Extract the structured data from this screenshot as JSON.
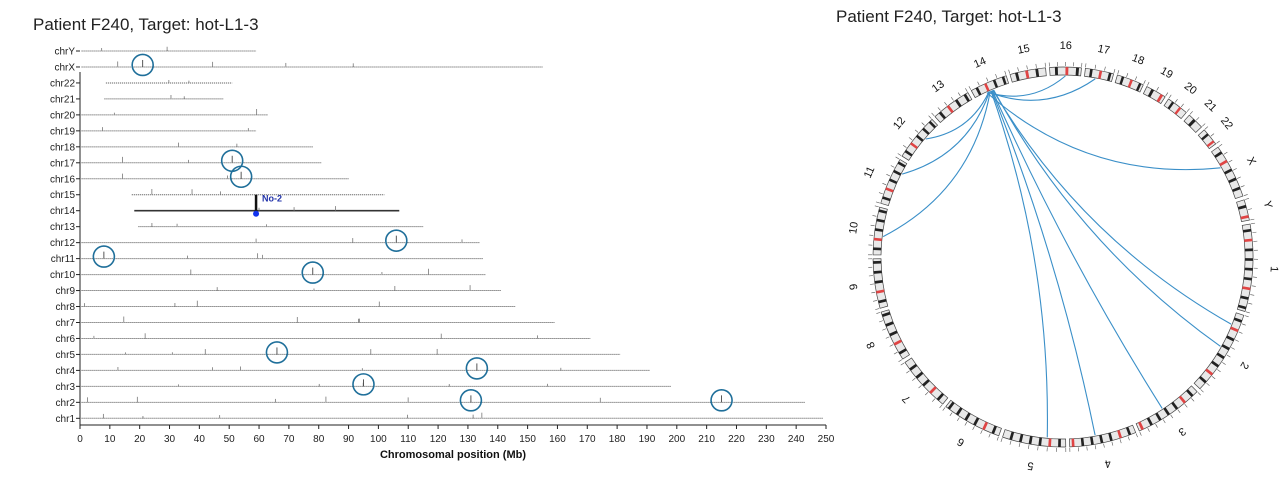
{
  "titles": {
    "left": "Patient F240, Target: hot-L1-3",
    "right": "Patient F240, Target: hot-L1-3"
  },
  "chart_data": [
    {
      "type": "scatter",
      "title": "Patient F240, Target: hot-L1-3",
      "xlabel": "Chromosomal position (Mb)",
      "ylabel": "",
      "xlim": [
        0,
        250
      ],
      "xticks": [
        0,
        10,
        20,
        30,
        40,
        50,
        60,
        70,
        80,
        90,
        100,
        110,
        120,
        130,
        140,
        150,
        160,
        170,
        180,
        190,
        200,
        210,
        220,
        230,
        240,
        250
      ],
      "grid": false,
      "chromosomes": [
        {
          "name": "chrY",
          "length": 59
        },
        {
          "name": "chrX",
          "length": 155
        },
        {
          "name": "chr22",
          "length": 51
        },
        {
          "name": "chr21",
          "length": 48
        },
        {
          "name": "chr20",
          "length": 63
        },
        {
          "name": "chr19",
          "length": 59
        },
        {
          "name": "chr18",
          "length": 78
        },
        {
          "name": "chr17",
          "length": 81
        },
        {
          "name": "chr16",
          "length": 90
        },
        {
          "name": "chr15",
          "length": 102
        },
        {
          "name": "chr14",
          "length": 107
        },
        {
          "name": "chr13",
          "length": 115
        },
        {
          "name": "chr12",
          "length": 134
        },
        {
          "name": "chr11",
          "length": 135
        },
        {
          "name": "chr10",
          "length": 136
        },
        {
          "name": "chr9",
          "length": 141
        },
        {
          "name": "chr8",
          "length": 146
        },
        {
          "name": "chr7",
          "length": 159
        },
        {
          "name": "chr6",
          "length": 171
        },
        {
          "name": "chr5",
          "length": 181
        },
        {
          "name": "chr4",
          "length": 191
        },
        {
          "name": "chr3",
          "length": 198
        },
        {
          "name": "chr2",
          "length": 243
        },
        {
          "name": "chr1",
          "length": 249
        }
      ],
      "source_peak": {
        "chromosome": "chr14",
        "position": 59,
        "label": "No-2"
      },
      "circled_insertions": [
        {
          "chromosome": "chrX",
          "position": 21
        },
        {
          "chromosome": "chr17",
          "position": 51
        },
        {
          "chromosome": "chr16",
          "position": 54
        },
        {
          "chromosome": "chr12",
          "position": 106
        },
        {
          "chromosome": "chr11",
          "position": 8
        },
        {
          "chromosome": "chr10",
          "position": 78
        },
        {
          "chromosome": "chr5",
          "position": 66
        },
        {
          "chromosome": "chr4",
          "position": 133
        },
        {
          "chromosome": "chr3",
          "position": 95
        },
        {
          "chromosome": "chr2",
          "position": 131
        },
        {
          "chromosome": "chr2",
          "position": 215
        }
      ]
    },
    {
      "type": "circos",
      "title": "Patient F240, Target: hot-L1-3",
      "ideogram_order": [
        "1",
        "2",
        "3",
        "4",
        "5",
        "6",
        "7",
        "8",
        "9",
        "10",
        "11",
        "12",
        "13",
        "14",
        "15",
        "16",
        "17",
        "18",
        "19",
        "20",
        "21",
        "22",
        "X",
        "Y"
      ],
      "chromosome_lengths_mb": [
        249,
        243,
        198,
        191,
        181,
        171,
        159,
        146,
        141,
        136,
        135,
        134,
        115,
        107,
        102,
        90,
        81,
        78,
        59,
        63,
        48,
        51,
        155,
        59
      ],
      "links": [
        {
          "from": "14",
          "to": "X"
        },
        {
          "from": "14",
          "to": "16"
        },
        {
          "from": "14",
          "to": "17"
        },
        {
          "from": "14",
          "to": "12"
        },
        {
          "from": "14",
          "to": "11"
        },
        {
          "from": "14",
          "to": "10"
        },
        {
          "from": "14",
          "to": "5"
        },
        {
          "from": "14",
          "to": "4"
        },
        {
          "from": "14",
          "to": "3"
        },
        {
          "from": "14",
          "to": "2"
        },
        {
          "from": "14",
          "to": "2"
        }
      ],
      "link_color": "#3a8fc8"
    }
  ]
}
